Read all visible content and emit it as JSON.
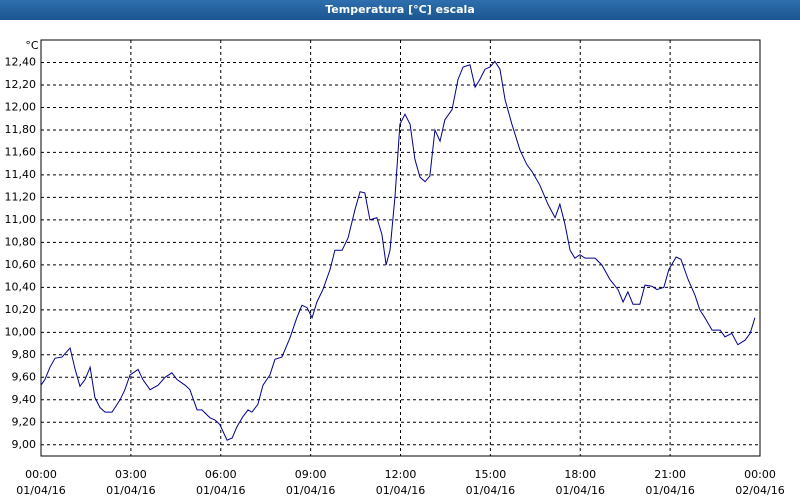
{
  "chart_data": {
    "type": "line",
    "title": "Temperatura [°C] escala",
    "ylabel": "°C",
    "xlim": [
      0,
      24
    ],
    "ylim": [
      8.9,
      12.6
    ],
    "xticks": [
      {
        "value": 0,
        "label": "00:00"
      },
      {
        "value": 3,
        "label": "03:00"
      },
      {
        "value": 6,
        "label": "06:00"
      },
      {
        "value": 9,
        "label": "09:00"
      },
      {
        "value": 12,
        "label": "12:00"
      },
      {
        "value": 15,
        "label": "15:00"
      },
      {
        "value": 18,
        "label": "18:00"
      },
      {
        "value": 21,
        "label": "21:00"
      },
      {
        "value": 24,
        "label": "00:00"
      }
    ],
    "xtick_dates": [
      "01/04/16",
      "01/04/16",
      "01/04/16",
      "01/04/16",
      "01/04/16",
      "01/04/16",
      "01/04/16",
      "01/04/16",
      "02/04/16"
    ],
    "yticks": [
      {
        "value": 9.0,
        "label": "9,00"
      },
      {
        "value": 9.2,
        "label": "9,20"
      },
      {
        "value": 9.4,
        "label": "9,40"
      },
      {
        "value": 9.6,
        "label": "9,60"
      },
      {
        "value": 9.8,
        "label": "9,80"
      },
      {
        "value": 10.0,
        "label": "10,00"
      },
      {
        "value": 10.2,
        "label": "10,20"
      },
      {
        "value": 10.4,
        "label": "10,40"
      },
      {
        "value": 10.6,
        "label": "10,60"
      },
      {
        "value": 10.8,
        "label": "10,80"
      },
      {
        "value": 11.0,
        "label": "11,00"
      },
      {
        "value": 11.2,
        "label": "11,20"
      },
      {
        "value": 11.4,
        "label": "11,40"
      },
      {
        "value": 11.6,
        "label": "11,60"
      },
      {
        "value": 11.8,
        "label": "11,80"
      },
      {
        "value": 12.0,
        "label": "12,00"
      },
      {
        "value": 12.2,
        "label": "12,20"
      },
      {
        "value": 12.4,
        "label": "12,40"
      }
    ],
    "grid": true,
    "x": [
      0,
      0.13,
      0.3,
      0.47,
      0.7,
      0.97,
      1.14,
      1.3,
      1.47,
      1.64,
      1.8,
      1.97,
      2.14,
      2.37,
      2.64,
      2.8,
      2.97,
      3.24,
      3.4,
      3.64,
      3.91,
      4.14,
      4.37,
      4.54,
      4.81,
      4.97,
      5.21,
      5.37,
      5.64,
      5.81,
      5.97,
      6.21,
      6.38,
      6.54,
      6.74,
      6.91,
      7.04,
      7.24,
      7.41,
      7.64,
      7.81,
      8.04,
      8.31,
      8.54,
      8.71,
      8.88,
      9.05,
      9.21,
      9.41,
      9.65,
      9.81,
      10.05,
      10.25,
      10.48,
      10.65,
      10.81,
      10.98,
      11.21,
      11.38,
      11.52,
      11.65,
      11.82,
      11.98,
      12.15,
      12.32,
      12.48,
      12.65,
      12.82,
      12.98,
      13.15,
      13.32,
      13.48,
      13.72,
      13.92,
      14.09,
      14.32,
      14.49,
      14.65,
      14.82,
      14.99,
      15.15,
      15.32,
      15.49,
      15.72,
      15.99,
      16.22,
      16.39,
      16.65,
      16.92,
      17.16,
      17.32,
      17.49,
      17.66,
      17.82,
      17.99,
      18.16,
      18.49,
      18.72,
      18.99,
      19.26,
      19.43,
      19.59,
      19.76,
      19.99,
      20.16,
      20.39,
      20.56,
      20.79,
      20.96,
      21.2,
      21.36,
      21.6,
      21.83,
      21.99,
      22.16,
      22.4,
      22.67,
      22.83,
      23.06,
      23.26,
      23.5,
      23.67,
      23.83
    ],
    "series": [
      {
        "color": "#00008b",
        "values": [
          9.53,
          9.58,
          9.69,
          9.77,
          9.78,
          9.86,
          9.67,
          9.52,
          9.58,
          9.69,
          9.42,
          9.33,
          9.29,
          9.29,
          9.4,
          9.49,
          9.62,
          9.67,
          9.58,
          9.49,
          9.53,
          9.6,
          9.64,
          9.58,
          9.53,
          9.49,
          9.31,
          9.31,
          9.24,
          9.22,
          9.18,
          9.04,
          9.06,
          9.16,
          9.25,
          9.31,
          9.29,
          9.36,
          9.53,
          9.62,
          9.76,
          9.78,
          9.95,
          10.13,
          10.24,
          10.22,
          10.13,
          10.27,
          10.38,
          10.56,
          10.73,
          10.73,
          10.84,
          11.09,
          11.25,
          11.24,
          11.0,
          11.02,
          10.87,
          10.6,
          10.73,
          11.22,
          11.85,
          11.94,
          11.85,
          11.54,
          11.38,
          11.34,
          11.39,
          11.8,
          11.7,
          11.89,
          11.98,
          12.25,
          12.36,
          12.38,
          12.18,
          12.25,
          12.34,
          12.36,
          12.41,
          12.34,
          12.07,
          11.85,
          11.62,
          11.49,
          11.43,
          11.31,
          11.14,
          11.02,
          11.14,
          10.96,
          10.73,
          10.66,
          10.69,
          10.66,
          10.66,
          10.6,
          10.47,
          10.38,
          10.27,
          10.36,
          10.25,
          10.25,
          10.42,
          10.41,
          10.38,
          10.4,
          10.56,
          10.67,
          10.65,
          10.47,
          10.33,
          10.2,
          10.13,
          10.02,
          10.02,
          9.96,
          9.99,
          9.89,
          9.93,
          9.99,
          10.13
        ]
      }
    ]
  }
}
